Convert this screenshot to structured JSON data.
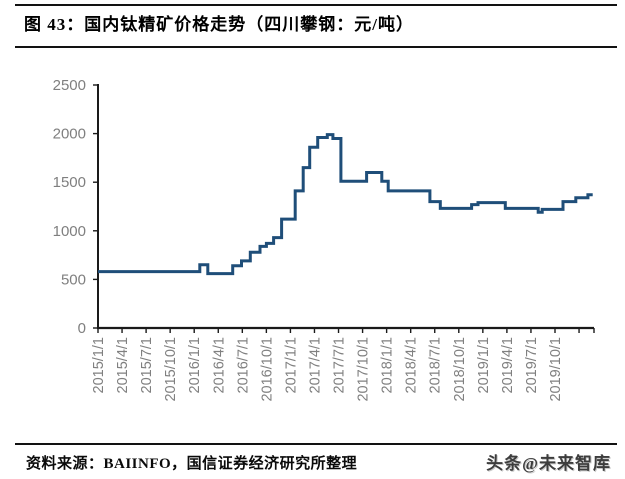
{
  "header": {
    "title": "图 43：国内钛精矿价格走势（四川攀钢：元/吨）"
  },
  "footer": {
    "source": "资料来源：BAIINFO，国信证券经济研究所整理",
    "watermark": "头条@未来智库"
  },
  "chart_data": {
    "type": "line",
    "subtype": "step-after",
    "title": "国内钛精矿价格走势（四川攀钢：元/吨）",
    "unit": "元/吨",
    "ylim": [
      0,
      2500
    ],
    "yticks": [
      0,
      500,
      1000,
      1500,
      2000,
      2500
    ],
    "xtick_labels": [
      "2015/1/1",
      "2015/4/1",
      "2015/7/1",
      "2015/10/1",
      "2016/1/1",
      "2016/4/1",
      "2016/7/1",
      "2016/10/1",
      "2017/1/1",
      "2017/4/1",
      "2017/7/1",
      "2017/10/1",
      "2018/1/1",
      "2018/4/1",
      "2018/7/1",
      "2018/10/1",
      "2019/1/1",
      "2019/4/1",
      "2019/7/1",
      "2019/10/1"
    ],
    "grid": false,
    "legend": "none",
    "colors": {
      "line": "#1f4e79",
      "axis": "#1a1a1a",
      "tick_labels": "#7f7f7f"
    },
    "series": [
      {
        "name": "国内钛精矿价格（四川攀钢，元/吨）",
        "points": [
          {
            "date": "2015/1",
            "m": 0.0,
            "value": 580
          },
          {
            "date": "2016/1",
            "m": 12.7,
            "value": 650
          },
          {
            "date": "2016/2",
            "m": 13.7,
            "value": 560
          },
          {
            "date": "2016/5",
            "m": 16.8,
            "value": 640
          },
          {
            "date": "2016/6",
            "m": 17.9,
            "value": 690
          },
          {
            "date": "2016/8",
            "m": 19.0,
            "value": 780
          },
          {
            "date": "2016/9",
            "m": 20.2,
            "value": 840
          },
          {
            "date": "2016/10",
            "m": 21.0,
            "value": 870
          },
          {
            "date": "2016/10",
            "m": 21.9,
            "value": 930
          },
          {
            "date": "2016/11",
            "m": 22.9,
            "value": 1120
          },
          {
            "date": "2017/1",
            "m": 24.6,
            "value": 1410
          },
          {
            "date": "2017/2",
            "m": 25.6,
            "value": 1650
          },
          {
            "date": "2017/3",
            "m": 26.4,
            "value": 1860
          },
          {
            "date": "2017/4",
            "m": 27.4,
            "value": 1960
          },
          {
            "date": "2017/5",
            "m": 28.6,
            "value": 1990
          },
          {
            "date": "2017/6",
            "m": 29.3,
            "value": 1950
          },
          {
            "date": "2017/7",
            "m": 30.3,
            "value": 1510
          },
          {
            "date": "2017/10",
            "m": 33.5,
            "value": 1600
          },
          {
            "date": "2017/12",
            "m": 35.4,
            "value": 1510
          },
          {
            "date": "2018/1",
            "m": 36.2,
            "value": 1410
          },
          {
            "date": "2018/6",
            "m": 41.4,
            "value": 1300
          },
          {
            "date": "2018/7",
            "m": 42.7,
            "value": 1230
          },
          {
            "date": "2018/11",
            "m": 46.6,
            "value": 1270
          },
          {
            "date": "2018/12",
            "m": 47.4,
            "value": 1290
          },
          {
            "date": "2019/3",
            "m": 50.8,
            "value": 1230
          },
          {
            "date": "2019/7",
            "m": 54.9,
            "value": 1190
          },
          {
            "date": "2019/8",
            "m": 55.4,
            "value": 1220
          },
          {
            "date": "2019/11",
            "m": 58.0,
            "value": 1300
          },
          {
            "date": "2019/12",
            "m": 59.6,
            "value": 1340
          },
          {
            "date": "2020/2",
            "m": 61.1,
            "value": 1370
          }
        ]
      }
    ],
    "end_m": 61.7
  }
}
